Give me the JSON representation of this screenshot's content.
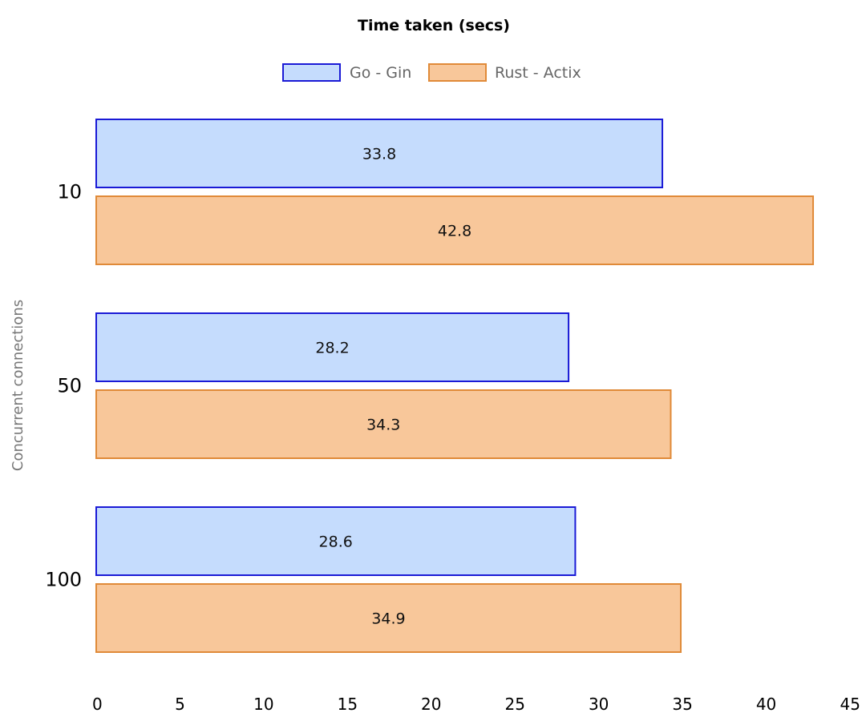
{
  "chart_data": {
    "type": "bar",
    "orientation": "horizontal",
    "title": "Time taken (secs)",
    "xlabel": "",
    "ylabel": "Concurrent connections",
    "categories": [
      "10",
      "50",
      "100"
    ],
    "series": [
      {
        "name": "Go - Gin",
        "values": [
          33.8,
          28.2,
          28.6
        ],
        "fill": "#c5dcfd",
        "stroke": "#1a1ad6"
      },
      {
        "name": "Rust - Actix",
        "values": [
          42.8,
          34.3,
          34.9
        ],
        "fill": "#f8c79a",
        "stroke": "#e08a38"
      }
    ],
    "x_ticks": [
      0,
      5,
      10,
      15,
      20,
      25,
      30,
      35,
      40,
      45
    ],
    "xlim": [
      0,
      45
    ],
    "grid": false,
    "legend_position": "top-center"
  }
}
